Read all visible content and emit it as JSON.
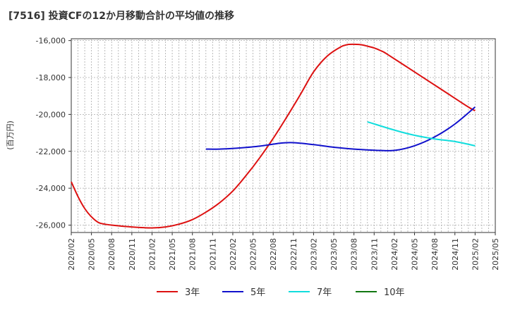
{
  "chart_data": {
    "type": "line",
    "title": "[7516]  投資CFの12か月移動合計の平均値の推移",
    "ylabel": "(百万円)",
    "xlabel": "",
    "ylim": [
      -26400,
      -15900
    ],
    "yticks": [
      -16000,
      -18000,
      -20000,
      -22000,
      -24000,
      -26000
    ],
    "ytick_labels": [
      "-16,000",
      "-18,000",
      "-20,000",
      "-22,000",
      "-24,000",
      "-26,000"
    ],
    "xlim": [
      "2020-02",
      "2025-05"
    ],
    "xticks": [
      "2020/02",
      "2020/05",
      "2020/08",
      "2020/11",
      "2021/02",
      "2021/05",
      "2021/08",
      "2021/11",
      "2022/02",
      "2022/05",
      "2022/08",
      "2022/11",
      "2023/02",
      "2023/05",
      "2023/08",
      "2023/11",
      "2024/02",
      "2024/05",
      "2024/08",
      "2024/11",
      "2025/02",
      "2025/05"
    ],
    "grid": true,
    "legend_position": "bottom",
    "series": [
      {
        "name": "3年",
        "color": "#dd1111",
        "x": [
          "2020-02",
          "2020-03",
          "2020-04",
          "2020-05",
          "2020-06",
          "2020-07",
          "2020-08",
          "2020-11",
          "2021-02",
          "2021-04",
          "2021-06",
          "2021-08",
          "2021-10",
          "2021-12",
          "2022-02",
          "2022-04",
          "2022-06",
          "2022-08",
          "2022-10",
          "2022-12",
          "2023-02",
          "2023-04",
          "2023-06",
          "2023-07",
          "2023-08",
          "2023-09",
          "2023-10",
          "2023-11",
          "2023-12",
          "2024-01",
          "2024-05",
          "2024-09",
          "2025-01",
          "2025-02"
        ],
        "y": [
          -23650,
          -24450,
          -25100,
          -25550,
          -25850,
          -25950,
          -26000,
          -26100,
          -26150,
          -26100,
          -25950,
          -25700,
          -25300,
          -24800,
          -24150,
          -23300,
          -22350,
          -21300,
          -20150,
          -18950,
          -17700,
          -16850,
          -16350,
          -16220,
          -16200,
          -16220,
          -16300,
          -16400,
          -16550,
          -16750,
          -17700,
          -18650,
          -19600,
          -19800
        ]
      },
      {
        "name": "5年",
        "color": "#1111cc",
        "x": [
          "2021-10",
          "2021-12",
          "2022-03",
          "2022-06",
          "2022-09",
          "2022-11",
          "2023-02",
          "2023-05",
          "2023-08",
          "2023-11",
          "2024-02",
          "2024-05",
          "2024-08",
          "2024-11",
          "2025-02"
        ],
        "y": [
          -21880,
          -21880,
          -21820,
          -21720,
          -21560,
          -21530,
          -21640,
          -21780,
          -21880,
          -21940,
          -21950,
          -21700,
          -21220,
          -20520,
          -19600
        ]
      },
      {
        "name": "7年",
        "color": "#11dddd",
        "x": [
          "2023-10",
          "2024-02",
          "2024-05",
          "2024-08",
          "2024-11",
          "2025-02"
        ],
        "y": [
          -20400,
          -20850,
          -21130,
          -21330,
          -21470,
          -21700
        ]
      },
      {
        "name": "10年",
        "color": "#117711",
        "x": [],
        "y": []
      }
    ]
  }
}
